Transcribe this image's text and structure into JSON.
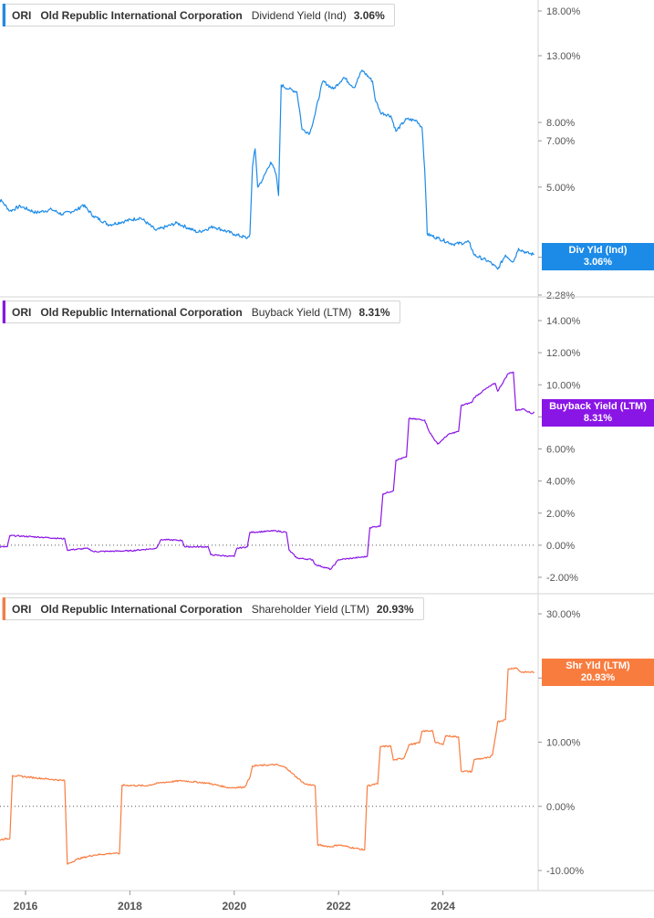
{
  "colors": {
    "blue": "#1c8be8",
    "purple": "#8a16e6",
    "orange": "#f97c3f",
    "axis_text": "#555555",
    "grid": "#d4d4d4"
  },
  "chart_data": [
    {
      "type": "line",
      "ticker": "ORI",
      "company": "Old Republic International Corporation",
      "metric": "Dividend Yield (Ind)",
      "current_value": "3.06%",
      "tag_label": "Div Yld (Ind)",
      "tag_value": "3.06%",
      "y_scale": "log",
      "ylim": [
        2.28,
        18.0
      ],
      "y_ticks": [
        "18.00%",
        "13.00%",
        "8.00%",
        "7.00%",
        "5.00%",
        "3.00%",
        "2.28%"
      ],
      "y_tick_values": [
        18,
        13,
        8,
        7,
        5,
        3,
        2.28
      ],
      "series": [
        {
          "values_pct": [
            [
              2015.4,
              4.7
            ],
            [
              2015.55,
              4.5
            ],
            [
              2015.7,
              4.2
            ],
            [
              2015.9,
              4.35
            ],
            [
              2016.2,
              4.15
            ],
            [
              2016.5,
              4.25
            ],
            [
              2016.7,
              4.1
            ],
            [
              2017.0,
              4.25
            ],
            [
              2017.1,
              4.4
            ],
            [
              2017.3,
              4.05
            ],
            [
              2017.6,
              3.8
            ],
            [
              2017.9,
              3.9
            ],
            [
              2018.2,
              4.0
            ],
            [
              2018.5,
              3.65
            ],
            [
              2018.9,
              3.85
            ],
            [
              2019.3,
              3.6
            ],
            [
              2019.6,
              3.75
            ],
            [
              2020.0,
              3.55
            ],
            [
              2020.25,
              3.45
            ],
            [
              2020.3,
              3.55
            ],
            [
              2020.35,
              5.8
            ],
            [
              2020.4,
              6.6
            ],
            [
              2020.45,
              5.0
            ],
            [
              2020.55,
              5.3
            ],
            [
              2020.7,
              6.0
            ],
            [
              2020.8,
              5.5
            ],
            [
              2020.85,
              4.7
            ],
            [
              2020.9,
              10.5
            ],
            [
              2021.05,
              10.2
            ],
            [
              2021.2,
              10.0
            ],
            [
              2021.3,
              7.6
            ],
            [
              2021.45,
              7.4
            ],
            [
              2021.55,
              8.5
            ],
            [
              2021.7,
              10.8
            ],
            [
              2021.9,
              10.2
            ],
            [
              2022.1,
              11.1
            ],
            [
              2022.3,
              10.3
            ],
            [
              2022.45,
              11.7
            ],
            [
              2022.65,
              10.8
            ],
            [
              2022.7,
              9.5
            ],
            [
              2022.8,
              8.6
            ],
            [
              2023.0,
              8.4
            ],
            [
              2023.1,
              7.5
            ],
            [
              2023.3,
              8.2
            ],
            [
              2023.5,
              8.1
            ],
            [
              2023.6,
              7.7
            ],
            [
              2023.7,
              3.55
            ],
            [
              2023.9,
              3.45
            ],
            [
              2024.2,
              3.3
            ],
            [
              2024.5,
              3.35
            ],
            [
              2024.6,
              3.05
            ],
            [
              2024.9,
              2.9
            ],
            [
              2025.05,
              2.75
            ],
            [
              2025.2,
              3.05
            ],
            [
              2025.35,
              2.9
            ],
            [
              2025.45,
              3.2
            ],
            [
              2025.6,
              3.1
            ],
            [
              2025.75,
              3.06
            ]
          ]
        }
      ]
    },
    {
      "type": "line",
      "ticker": "ORI",
      "company": "Old Republic International Corporation",
      "metric": "Buyback Yield (LTM)",
      "current_value": "8.31%",
      "tag_label": "Buyback Yield (LTM)",
      "tag_value": "8.31%",
      "ylim": [
        -2.9,
        14.9
      ],
      "y_ticks": [
        "14.00%",
        "12.00%",
        "10.00%",
        "8.00%",
        "6.00%",
        "4.00%",
        "2.00%",
        "0.00%",
        "-2.00%"
      ],
      "y_tick_values": [
        14,
        12,
        10,
        8,
        6,
        4,
        2,
        0,
        -2
      ],
      "series": [
        {
          "values_pct": [
            [
              2015.4,
              -0.1
            ],
            [
              2015.65,
              -0.1
            ],
            [
              2015.7,
              0.6
            ],
            [
              2016.3,
              0.5
            ],
            [
              2016.75,
              0.4
            ],
            [
              2016.8,
              -0.3
            ],
            [
              2017.2,
              -0.2
            ],
            [
              2017.3,
              -0.4
            ],
            [
              2018.0,
              -0.35
            ],
            [
              2018.5,
              -0.2
            ],
            [
              2018.6,
              0.35
            ],
            [
              2019.0,
              0.3
            ],
            [
              2019.05,
              -0.1
            ],
            [
              2019.5,
              -0.1
            ],
            [
              2019.55,
              -0.6
            ],
            [
              2020.0,
              -0.7
            ],
            [
              2020.05,
              -0.2
            ],
            [
              2020.25,
              -0.1
            ],
            [
              2020.3,
              0.8
            ],
            [
              2020.8,
              0.9
            ],
            [
              2021.0,
              0.8
            ],
            [
              2021.05,
              -0.3
            ],
            [
              2021.2,
              -0.8
            ],
            [
              2021.5,
              -0.9
            ],
            [
              2021.55,
              -1.2
            ],
            [
              2021.85,
              -1.5
            ],
            [
              2022.0,
              -0.9
            ],
            [
              2022.3,
              -0.8
            ],
            [
              2022.55,
              -0.7
            ],
            [
              2022.6,
              1.1
            ],
            [
              2022.8,
              1.2
            ],
            [
              2022.85,
              3.2
            ],
            [
              2023.05,
              3.4
            ],
            [
              2023.1,
              5.3
            ],
            [
              2023.3,
              5.5
            ],
            [
              2023.35,
              7.9
            ],
            [
              2023.65,
              7.8
            ],
            [
              2023.75,
              7.0
            ],
            [
              2023.9,
              6.3
            ],
            [
              2024.1,
              6.9
            ],
            [
              2024.3,
              7.1
            ],
            [
              2024.35,
              8.7
            ],
            [
              2024.55,
              8.9
            ],
            [
              2024.6,
              9.2
            ],
            [
              2024.8,
              9.7
            ],
            [
              2025.0,
              10.1
            ],
            [
              2025.05,
              9.6
            ],
            [
              2025.25,
              10.7
            ],
            [
              2025.35,
              10.8
            ],
            [
              2025.4,
              8.4
            ],
            [
              2025.55,
              8.5
            ],
            [
              2025.7,
              8.2
            ],
            [
              2025.75,
              8.31
            ]
          ]
        }
      ]
    },
    {
      "type": "line",
      "ticker": "ORI",
      "company": "Old Republic International Corporation",
      "metric": "Shareholder Yield (LTM)",
      "current_value": "20.93%",
      "tag_label": "Shr Yld (LTM)",
      "tag_value": "20.93%",
      "ylim": [
        -12.0,
        32.0
      ],
      "y_ticks": [
        "30.00%",
        "20.00%",
        "10.00%",
        "0.00%",
        "-10.00%"
      ],
      "y_tick_values": [
        30,
        20,
        10,
        0,
        -10
      ],
      "x_ticks": [
        "2016",
        "2018",
        "2020",
        "2022",
        "2024"
      ],
      "x_tick_values": [
        2016,
        2018,
        2020,
        2022,
        2024
      ],
      "xlim": [
        2015.5,
        2025.9
      ],
      "series": [
        {
          "values_pct": [
            [
              2015.4,
              -5.0
            ],
            [
              2015.5,
              -5.2
            ],
            [
              2015.7,
              -5.0
            ],
            [
              2015.75,
              4.8
            ],
            [
              2016.0,
              4.6
            ],
            [
              2016.5,
              4.2
            ],
            [
              2016.75,
              4.0
            ],
            [
              2016.8,
              -9.0
            ],
            [
              2017.0,
              -8.2
            ],
            [
              2017.3,
              -7.6
            ],
            [
              2017.7,
              -7.3
            ],
            [
              2017.8,
              -7.4
            ],
            [
              2017.85,
              3.3
            ],
            [
              2018.3,
              3.2
            ],
            [
              2018.6,
              3.7
            ],
            [
              2019.0,
              4.0
            ],
            [
              2019.5,
              3.6
            ],
            [
              2019.9,
              2.9
            ],
            [
              2020.2,
              3.0
            ],
            [
              2020.3,
              4.5
            ],
            [
              2020.35,
              6.3
            ],
            [
              2020.8,
              6.5
            ],
            [
              2021.0,
              6.0
            ],
            [
              2021.1,
              5.2
            ],
            [
              2021.35,
              3.5
            ],
            [
              2021.55,
              3.2
            ],
            [
              2021.6,
              -6.0
            ],
            [
              2021.85,
              -6.3
            ],
            [
              2022.0,
              -6.0
            ],
            [
              2022.3,
              -6.5
            ],
            [
              2022.5,
              -6.8
            ],
            [
              2022.55,
              3.2
            ],
            [
              2022.75,
              3.5
            ],
            [
              2022.8,
              9.3
            ],
            [
              2023.0,
              9.4
            ],
            [
              2023.05,
              7.2
            ],
            [
              2023.25,
              7.5
            ],
            [
              2023.35,
              9.6
            ],
            [
              2023.55,
              9.9
            ],
            [
              2023.6,
              11.7
            ],
            [
              2023.8,
              11.8
            ],
            [
              2023.85,
              10.0
            ],
            [
              2024.0,
              9.6
            ],
            [
              2024.05,
              11.0
            ],
            [
              2024.3,
              10.8
            ],
            [
              2024.35,
              5.5
            ],
            [
              2024.55,
              5.4
            ],
            [
              2024.6,
              7.3
            ],
            [
              2024.9,
              7.6
            ],
            [
              2024.95,
              8.0
            ],
            [
              2025.05,
              13.2
            ],
            [
              2025.2,
              13.5
            ],
            [
              2025.25,
              21.4
            ],
            [
              2025.4,
              21.6
            ],
            [
              2025.5,
              20.9
            ],
            [
              2025.75,
              20.93
            ]
          ]
        }
      ]
    }
  ]
}
